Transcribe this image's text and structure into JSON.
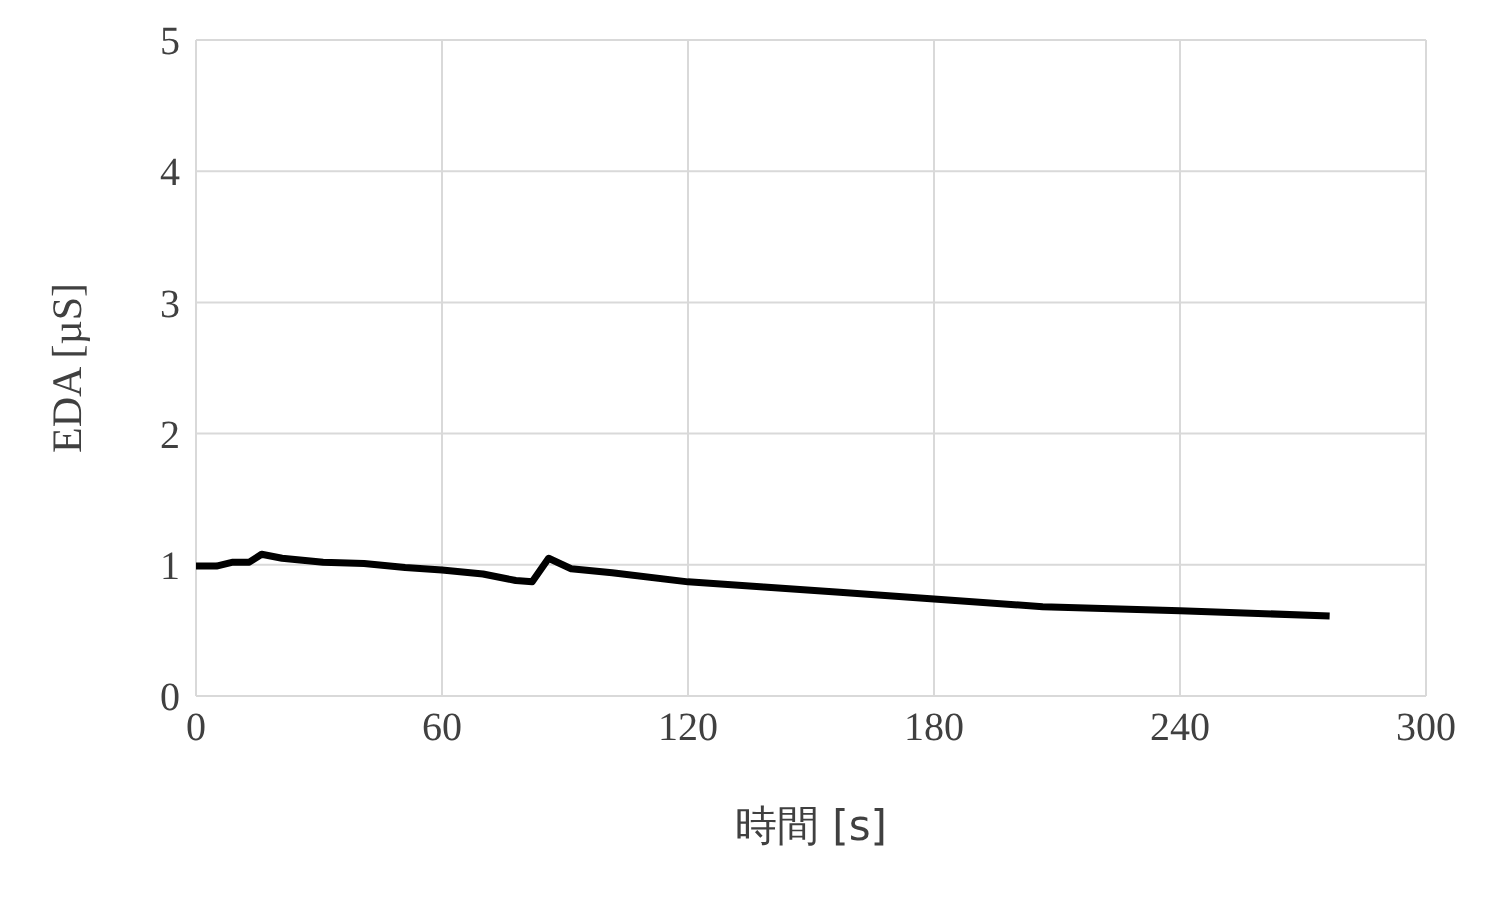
{
  "chart_data": {
    "type": "line",
    "xlabel": "時間 [s]",
    "ylabel": "EDA [µS]",
    "x": [
      0,
      5,
      9,
      13,
      16,
      21,
      31,
      41,
      51,
      60,
      70,
      78,
      82,
      86,
      91.5,
      101.5,
      120,
      138.5,
      157,
      180,
      206.5,
      240,
      276.5
    ],
    "series": [
      {
        "color": "#000000",
        "values": [
          0.99,
          0.99,
          1.02,
          1.02,
          1.08,
          1.05,
          1.02,
          1.01,
          0.98,
          0.96,
          0.93,
          0.88,
          0.87,
          1.05,
          0.97,
          0.94,
          0.87,
          0.83,
          0.79,
          0.74,
          0.68,
          0.65,
          0.61
        ]
      }
    ],
    "xlim": [
      0,
      300
    ],
    "xticks": [
      0,
      60,
      120,
      180,
      240,
      300
    ],
    "ylim": [
      0,
      5
    ],
    "yticks": [
      0,
      1,
      2,
      3,
      4,
      5
    ],
    "grid": true,
    "legend": false,
    "marker": "none",
    "line_style": "solid"
  }
}
